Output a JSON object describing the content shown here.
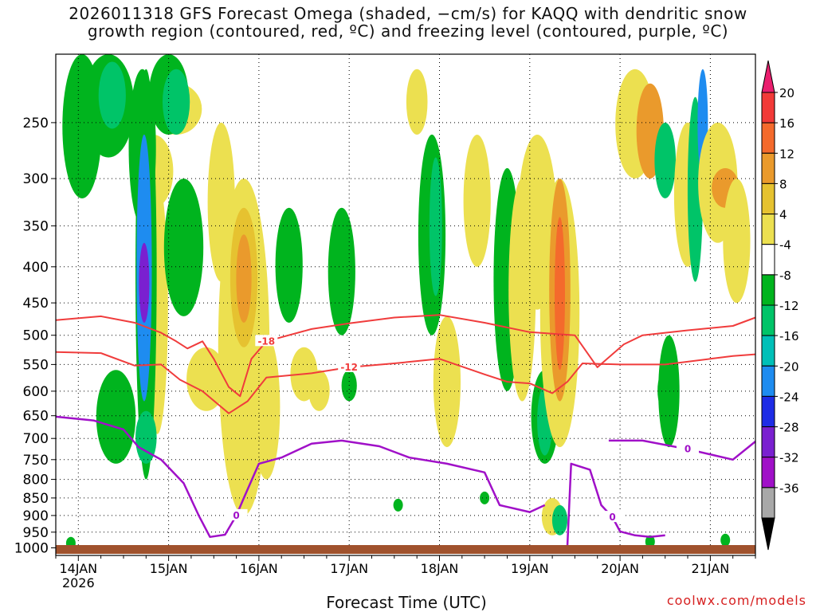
{
  "title_line1": "2026011318 GFS Forecast Omega (shaded, −cm/s) for KAQQ with dendritic snow",
  "title_line2": "growth region (contoured, red, ºC) and freezing level (contoured, purple, ºC)",
  "xlabel": "Forecast Time (UTC)",
  "credit": "coolwx.com/models",
  "chart_data": {
    "type": "heatmap",
    "title": "2026011318 GFS Forecast Omega (shaded, −cm/s) for KAQQ with dendritic snow growth region (contoured, red, ºC) and freezing level (contoured, purple, ºC)",
    "xlabel": "Forecast Time (UTC)",
    "ylabel": "",
    "x_ticks": [
      "14JAN",
      "15JAN",
      "16JAN",
      "17JAN",
      "18JAN",
      "19JAN",
      "20JAN",
      "21JAN"
    ],
    "x_year": "2026",
    "x_range_hours": [
      -6,
      180
    ],
    "y_ticks": [
      250,
      300,
      350,
      400,
      450,
      500,
      550,
      600,
      650,
      700,
      750,
      800,
      850,
      900,
      950,
      1000
    ],
    "y_range": [
      200,
      1025
    ],
    "y_scale": "log-pressure",
    "grid": true,
    "colorbar": {
      "labels": [
        "20",
        "16",
        "12",
        "8",
        "4",
        "-4",
        "-8",
        "-12",
        "-16",
        "-20",
        "-24",
        "-28",
        "-32",
        "-36"
      ],
      "colors": [
        "#ea1e6e",
        "#f23a38",
        "#f46a2c",
        "#ea9a2c",
        "#e6c230",
        "#ece050",
        "#ffffff",
        "#00b41e",
        "#00c468",
        "#00c0b8",
        "#1e8cf0",
        "#1e2ce6",
        "#7a20d0",
        "#a010c8",
        "#a8a8a8",
        "#000000"
      ]
    },
    "red_contours": [
      {
        "label": "-18",
        "points": [
          [
            -6,
            476
          ],
          [
            6,
            470
          ],
          [
            15,
            480
          ],
          [
            22,
            496
          ],
          [
            26,
            510
          ],
          [
            29,
            522
          ],
          [
            33,
            510
          ],
          [
            36,
            540
          ],
          [
            40,
            592
          ],
          [
            43,
            610
          ],
          [
            46,
            540
          ],
          [
            50,
            510
          ],
          [
            62,
            490
          ],
          [
            72,
            481
          ],
          [
            84,
            472
          ],
          [
            96,
            468
          ],
          [
            108,
            480
          ],
          [
            120,
            495
          ],
          [
            132,
            500
          ],
          [
            138,
            555
          ],
          [
            145,
            515
          ],
          [
            150,
            500
          ],
          [
            162,
            492
          ],
          [
            174,
            485
          ],
          [
            180,
            472
          ]
        ]
      },
      {
        "label": "-12",
        "points": [
          [
            -6,
            528
          ],
          [
            6,
            530
          ],
          [
            15,
            552
          ],
          [
            22,
            550
          ],
          [
            27,
            578
          ],
          [
            33,
            600
          ],
          [
            40,
            645
          ],
          [
            45,
            620
          ],
          [
            50,
            574
          ],
          [
            62,
            566
          ],
          [
            72,
            555
          ],
          [
            84,
            548
          ],
          [
            96,
            540
          ],
          [
            108,
            568
          ],
          [
            114,
            582
          ],
          [
            120,
            585
          ],
          [
            126,
            604
          ],
          [
            130,
            582
          ],
          [
            134,
            548
          ],
          [
            144,
            550
          ],
          [
            156,
            550
          ],
          [
            168,
            540
          ],
          [
            174,
            535
          ],
          [
            180,
            532
          ]
        ]
      }
    ],
    "purple_contours": [
      {
        "label": "0",
        "points": [
          [
            -6,
            652
          ],
          [
            4,
            660
          ],
          [
            12,
            680
          ],
          [
            16,
            720
          ],
          [
            22,
            750
          ],
          [
            28,
            810
          ],
          [
            32,
            900
          ],
          [
            35,
            965
          ],
          [
            39,
            958
          ],
          [
            42,
            900
          ],
          [
            44,
            850
          ],
          [
            48,
            760
          ],
          [
            54,
            745
          ],
          [
            62,
            712
          ],
          [
            70,
            705
          ],
          [
            80,
            718
          ],
          [
            88,
            745
          ],
          [
            98,
            760
          ],
          [
            108,
            782
          ],
          [
            112,
            870
          ],
          [
            120,
            890
          ],
          [
            124,
            870
          ]
        ]
      },
      {
        "label": "0",
        "points": [
          [
            130,
            995
          ],
          [
            131,
            760
          ],
          [
            136,
            775
          ],
          [
            139,
            870
          ],
          [
            142,
            905
          ],
          [
            144,
            948
          ],
          [
            148,
            960
          ],
          [
            152,
            965
          ],
          [
            156,
            960
          ]
        ]
      },
      {
        "label": "0",
        "points": [
          [
            141,
            705
          ],
          [
            150,
            705
          ],
          [
            162,
            725
          ],
          [
            174,
            750
          ],
          [
            180,
            707
          ]
        ]
      }
    ]
  }
}
